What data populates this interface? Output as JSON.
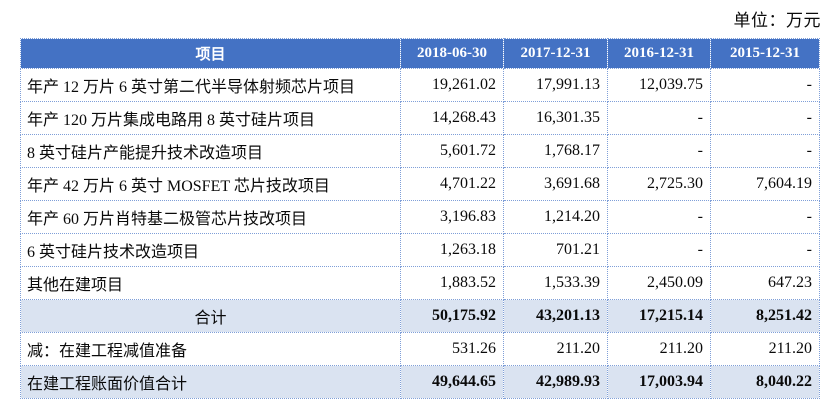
{
  "meta": {
    "unit_label": "单位：万元"
  },
  "table": {
    "columns": [
      "项目",
      "2018-06-30",
      "2017-12-31",
      "2016-12-31",
      "2015-12-31"
    ],
    "rows": [
      {
        "label": "年产 12 万片 6 英寸第二代半导体射频芯片项目",
        "values": [
          "19,261.02",
          "17,991.13",
          "12,039.75",
          "-"
        ],
        "highlight": false,
        "center": false,
        "bold": false
      },
      {
        "label": "年产 120 万片集成电路用 8 英寸硅片项目",
        "values": [
          "14,268.43",
          "16,301.35",
          "-",
          "-"
        ],
        "highlight": false,
        "center": false,
        "bold": false
      },
      {
        "label": "8 英寸硅片产能提升技术改造项目",
        "values": [
          "5,601.72",
          "1,768.17",
          "-",
          "-"
        ],
        "highlight": false,
        "center": false,
        "bold": false
      },
      {
        "label": "年产 42 万片 6 英寸 MOSFET 芯片技改项目",
        "values": [
          "4,701.22",
          "3,691.68",
          "2,725.30",
          "7,604.19"
        ],
        "highlight": false,
        "center": false,
        "bold": false
      },
      {
        "label": "年产 60 万片肖特基二极管芯片技改项目",
        "values": [
          "3,196.83",
          "1,214.20",
          "-",
          "-"
        ],
        "highlight": false,
        "center": false,
        "bold": false
      },
      {
        "label": "6 英寸硅片技术改造项目",
        "values": [
          "1,263.18",
          "701.21",
          "-",
          "-"
        ],
        "highlight": false,
        "center": false,
        "bold": false
      },
      {
        "label": "其他在建项目",
        "values": [
          "1,883.52",
          "1,533.39",
          "2,450.09",
          "647.23"
        ],
        "highlight": false,
        "center": false,
        "bold": false
      },
      {
        "label": "合计",
        "values": [
          "50,175.92",
          "43,201.13",
          "17,215.14",
          "8,251.42"
        ],
        "highlight": true,
        "center": true,
        "bold": true
      },
      {
        "label": "减：在建工程减值准备",
        "values": [
          "531.26",
          "211.20",
          "211.20",
          "211.20"
        ],
        "highlight": false,
        "center": false,
        "bold": false
      },
      {
        "label": "在建工程账面价值合计",
        "values": [
          "49,644.65",
          "42,989.93",
          "17,003.94",
          "8,040.22"
        ],
        "highlight": true,
        "center": false,
        "bold": true
      }
    ],
    "colors": {
      "header_bg": "#4472C4",
      "header_text": "#FFFFFF",
      "highlight_bg": "#DAE3F1",
      "border": "#7F9FD8",
      "text": "#0A0A0A"
    }
  }
}
